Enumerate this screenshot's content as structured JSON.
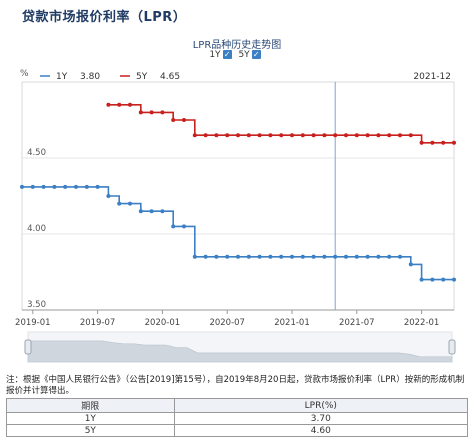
{
  "page": {
    "title": "贷款市场报价利率（LPR）",
    "chart_title": "LPR品种历史走势图",
    "toggles": [
      {
        "label": "1Y",
        "checked": true
      },
      {
        "label": "5Y",
        "checked": true
      }
    ],
    "note": "注：根据《中国人民银行公告》（公告[2019]第15号），自2019年8月20日起，贷款市场报价利率（LPR）按新的形成机制报价并计算得出。",
    "table": {
      "headers": [
        "期限",
        "LPR(%)"
      ],
      "rows": [
        [
          "1Y",
          "3.70"
        ],
        [
          "5Y",
          "4.60"
        ]
      ]
    }
  },
  "chart_data": {
    "type": "line",
    "ylabel": "%",
    "ylim": [
      3.5,
      5.0
    ],
    "yticks": [
      "3.50",
      "4.00",
      "4.50"
    ],
    "xticks": [
      "2019-01",
      "2019-07",
      "2020-01",
      "2020-07",
      "2021-01",
      "2021-07",
      "2022-01"
    ],
    "cursor": {
      "label": "2021-12"
    },
    "series": [
      {
        "name": "1Y",
        "legend_value": "3.80",
        "color": "#3b7fc4",
        "x": [
          "2018-12",
          "2019-01",
          "2019-02",
          "2019-03",
          "2019-04",
          "2019-05",
          "2019-06",
          "2019-07",
          "2019-08",
          "2019-09",
          "2019-10",
          "2019-11",
          "2019-12",
          "2020-01",
          "2020-02",
          "2020-03",
          "2020-04",
          "2020-05",
          "2020-06",
          "2020-07",
          "2020-08",
          "2020-09",
          "2020-10",
          "2020-11",
          "2020-12",
          "2021-01",
          "2021-02",
          "2021-03",
          "2021-04",
          "2021-05",
          "2021-06",
          "2021-07",
          "2021-08",
          "2021-09",
          "2021-10",
          "2021-11",
          "2021-12",
          "2022-01",
          "2022-02",
          "2022-03",
          "2022-04"
        ],
        "values": [
          4.31,
          4.31,
          4.31,
          4.31,
          4.31,
          4.31,
          4.31,
          4.31,
          4.25,
          4.2,
          4.2,
          4.15,
          4.15,
          4.15,
          4.05,
          4.05,
          3.85,
          3.85,
          3.85,
          3.85,
          3.85,
          3.85,
          3.85,
          3.85,
          3.85,
          3.85,
          3.85,
          3.85,
          3.85,
          3.85,
          3.85,
          3.85,
          3.85,
          3.85,
          3.85,
          3.85,
          3.8,
          3.7,
          3.7,
          3.7,
          3.7
        ]
      },
      {
        "name": "5Y",
        "legend_value": "4.65",
        "color": "#c8201d",
        "x": [
          "2019-08",
          "2019-09",
          "2019-10",
          "2019-11",
          "2019-12",
          "2020-01",
          "2020-02",
          "2020-03",
          "2020-04",
          "2020-05",
          "2020-06",
          "2020-07",
          "2020-08",
          "2020-09",
          "2020-10",
          "2020-11",
          "2020-12",
          "2021-01",
          "2021-02",
          "2021-03",
          "2021-04",
          "2021-05",
          "2021-06",
          "2021-07",
          "2021-08",
          "2021-09",
          "2021-10",
          "2021-11",
          "2021-12",
          "2022-01",
          "2022-02",
          "2022-03",
          "2022-04"
        ],
        "values": [
          4.85,
          4.85,
          4.85,
          4.8,
          4.8,
          4.8,
          4.75,
          4.75,
          4.65,
          4.65,
          4.65,
          4.65,
          4.65,
          4.65,
          4.65,
          4.65,
          4.65,
          4.65,
          4.65,
          4.65,
          4.65,
          4.65,
          4.65,
          4.65,
          4.65,
          4.65,
          4.65,
          4.65,
          4.65,
          4.6,
          4.6,
          4.6,
          4.6
        ]
      }
    ]
  }
}
